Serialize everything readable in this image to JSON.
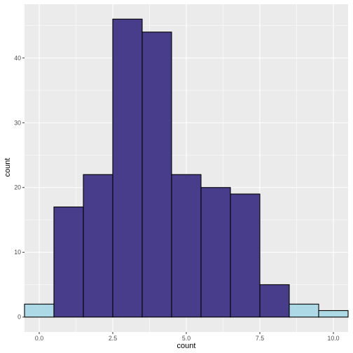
{
  "chart_data": {
    "type": "bar",
    "subtype": "histogram",
    "xlabel": "count",
    "ylabel": "count",
    "xlim": [
      -0.5,
      10.5
    ],
    "ylim": [
      0,
      48
    ],
    "x_ticks": [
      "0.0",
      "2.5",
      "5.0",
      "7.5",
      "10.0"
    ],
    "y_ticks": [
      "0",
      "10",
      "20",
      "30",
      "40"
    ],
    "bins": [
      0,
      1,
      2,
      3,
      4,
      5,
      6,
      7,
      8,
      9,
      10
    ],
    "values": [
      2,
      17,
      22,
      46,
      44,
      22,
      20,
      19,
      5,
      2,
      1
    ],
    "bar_colors": [
      "#add8e6",
      "#483d8b",
      "#483d8b",
      "#483d8b",
      "#483d8b",
      "#483d8b",
      "#483d8b",
      "#483d8b",
      "#483d8b",
      "#add8e6",
      "#add8e6"
    ],
    "bar_outline": "#000000",
    "panel_background": "#ebebeb",
    "grid": true,
    "grid_color": "#ffffff"
  }
}
